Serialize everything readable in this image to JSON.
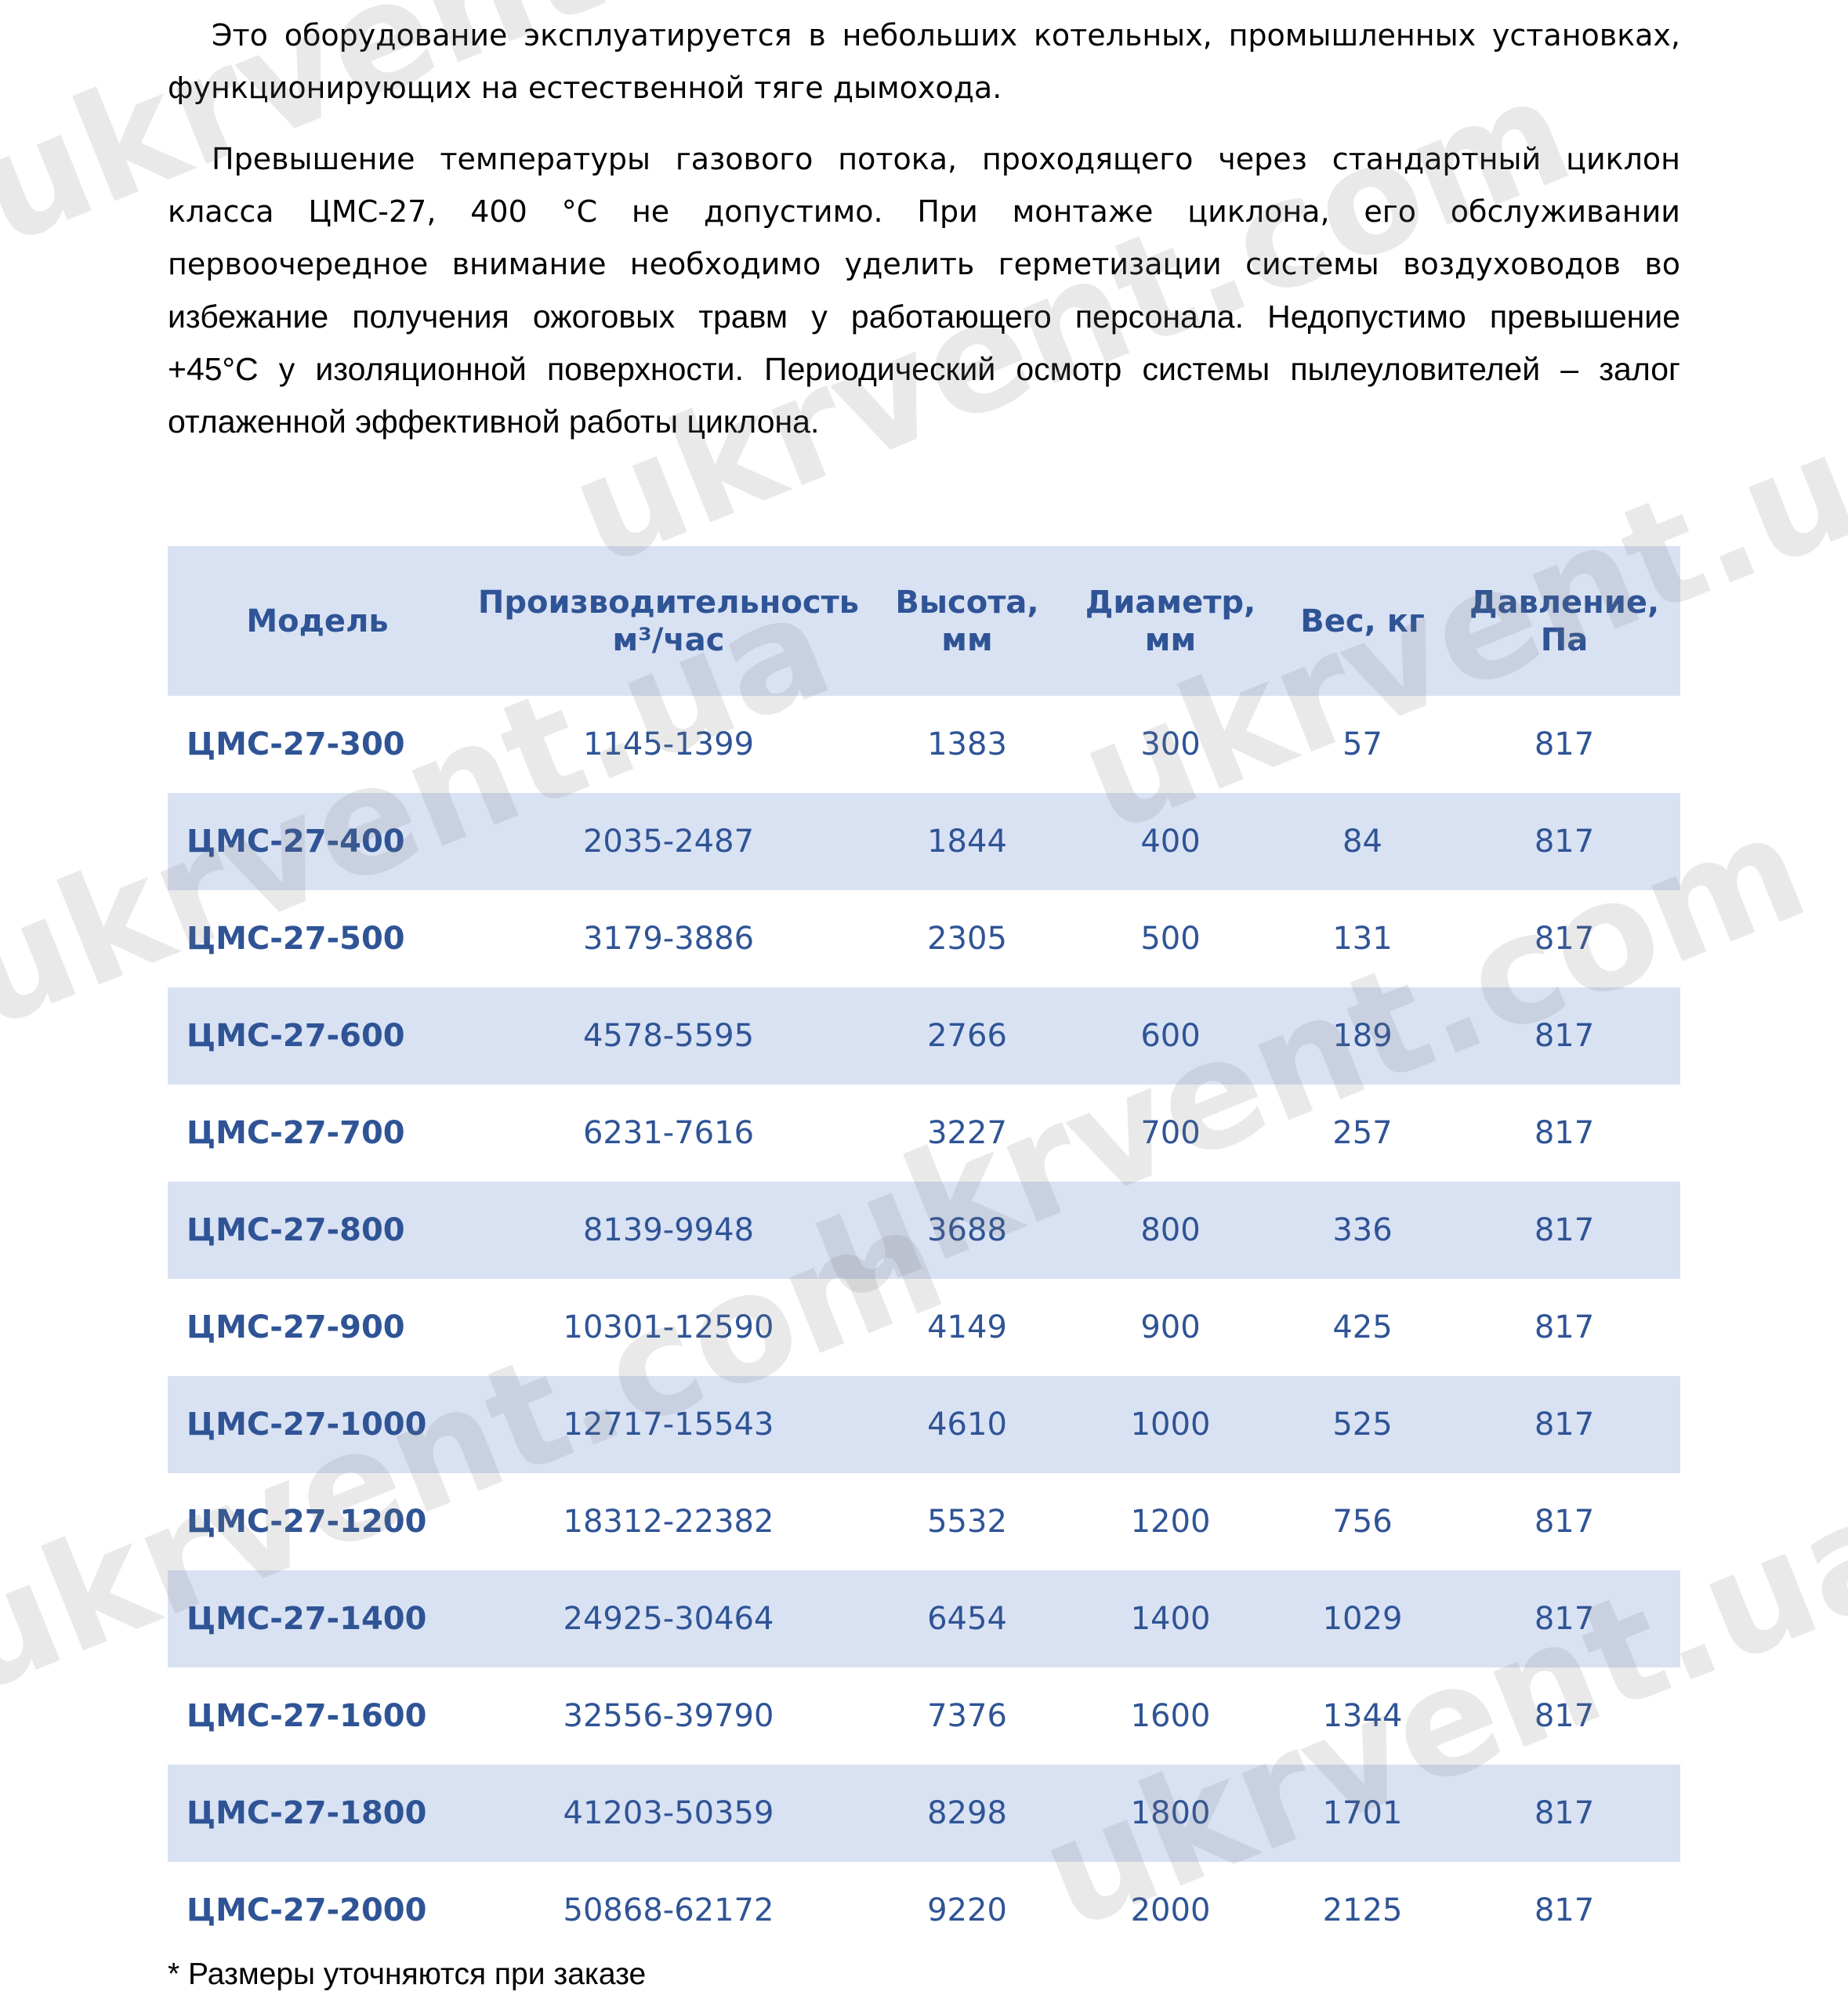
{
  "intro": {
    "paragraph1": [
      "Это оборудование эксплуатируется в небольших котельных, промышленных установках,",
      "функционирующих на естественной тяге дымохода."
    ],
    "paragraph2": [
      "Превышение температуры газового потока, проходящего через стандартный циклон",
      "класса ЦМС-27, 400 °С не допустимо. При монтаже циклона, его обслуживании",
      "первоочередное внимание необходимо уделить герметизации системы воздуховодов во",
      "избежание получения ожоговых травм у работающего персонала. Недопустимо превышение",
      "+45°С у изоляционной поверхности. Периодический осмотр системы пылеуловителей – залог",
      "отлаженной эффективной работы циклона."
    ]
  },
  "table": {
    "headers": {
      "model": "Модель",
      "capacity_line1": "Производительность",
      "capacity_line2": "м³/час",
      "height_line1": "Высота,",
      "height_line2": "мм",
      "diameter_line1": "Диаметр,",
      "diameter_line2": "мм",
      "weight": "Вес, кг",
      "pressure_line1": "Давление,",
      "pressure_line2": "Па"
    },
    "rows": [
      [
        "ЦМС-27-300",
        "1145-1399",
        "1383",
        "300",
        "57",
        "817"
      ],
      [
        "ЦМС-27-400",
        "2035-2487",
        "1844",
        "400",
        "84",
        "817"
      ],
      [
        "ЦМС-27-500",
        "3179-3886",
        "2305",
        "500",
        "131",
        "817"
      ],
      [
        "ЦМС-27-600",
        "4578-5595",
        "2766",
        "600",
        "189",
        "817"
      ],
      [
        "ЦМС-27-700",
        "6231-7616",
        "3227",
        "700",
        "257",
        "817"
      ],
      [
        "ЦМС-27-800",
        "8139-9948",
        "3688",
        "800",
        "336",
        "817"
      ],
      [
        "ЦМС-27-900",
        "10301-12590",
        "4149",
        "900",
        "425",
        "817"
      ],
      [
        "ЦМС-27-1000",
        "12717-15543",
        "4610",
        "1000",
        "525",
        "817"
      ],
      [
        "ЦМС-27-1200",
        "18312-22382",
        "5532",
        "1200",
        "756",
        "817"
      ],
      [
        "ЦМС-27-1400",
        "24925-30464",
        "6454",
        "1400",
        "1029",
        "817"
      ],
      [
        "ЦМС-27-1600",
        "32556-39790",
        "7376",
        "1600",
        "1344",
        "817"
      ],
      [
        "ЦМС-27-1800",
        "41203-50359",
        "8298",
        "1800",
        "1701",
        "817"
      ],
      [
        "ЦМС-27-2000",
        "50868-62172",
        "9220",
        "2000",
        "2125",
        "817"
      ]
    ]
  },
  "footnote": "* Размеры уточняются при заказе",
  "watermarks": [
    "ukrvent.com",
    "ukrvent.ua"
  ],
  "colors": {
    "header_bg": "#d9e2f3",
    "text_blue": "#2f5496"
  }
}
